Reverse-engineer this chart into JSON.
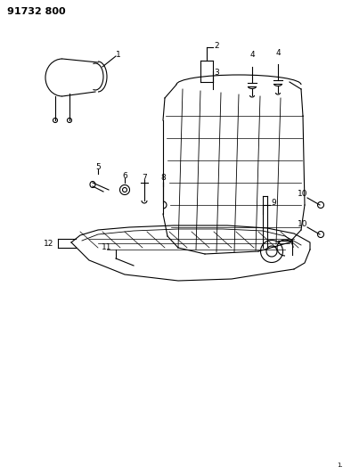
{
  "title": "91732 800",
  "background_color": "#ffffff",
  "line_color": "#000000",
  "figsize": [
    3.94,
    5.33
  ],
  "dpi": 100
}
